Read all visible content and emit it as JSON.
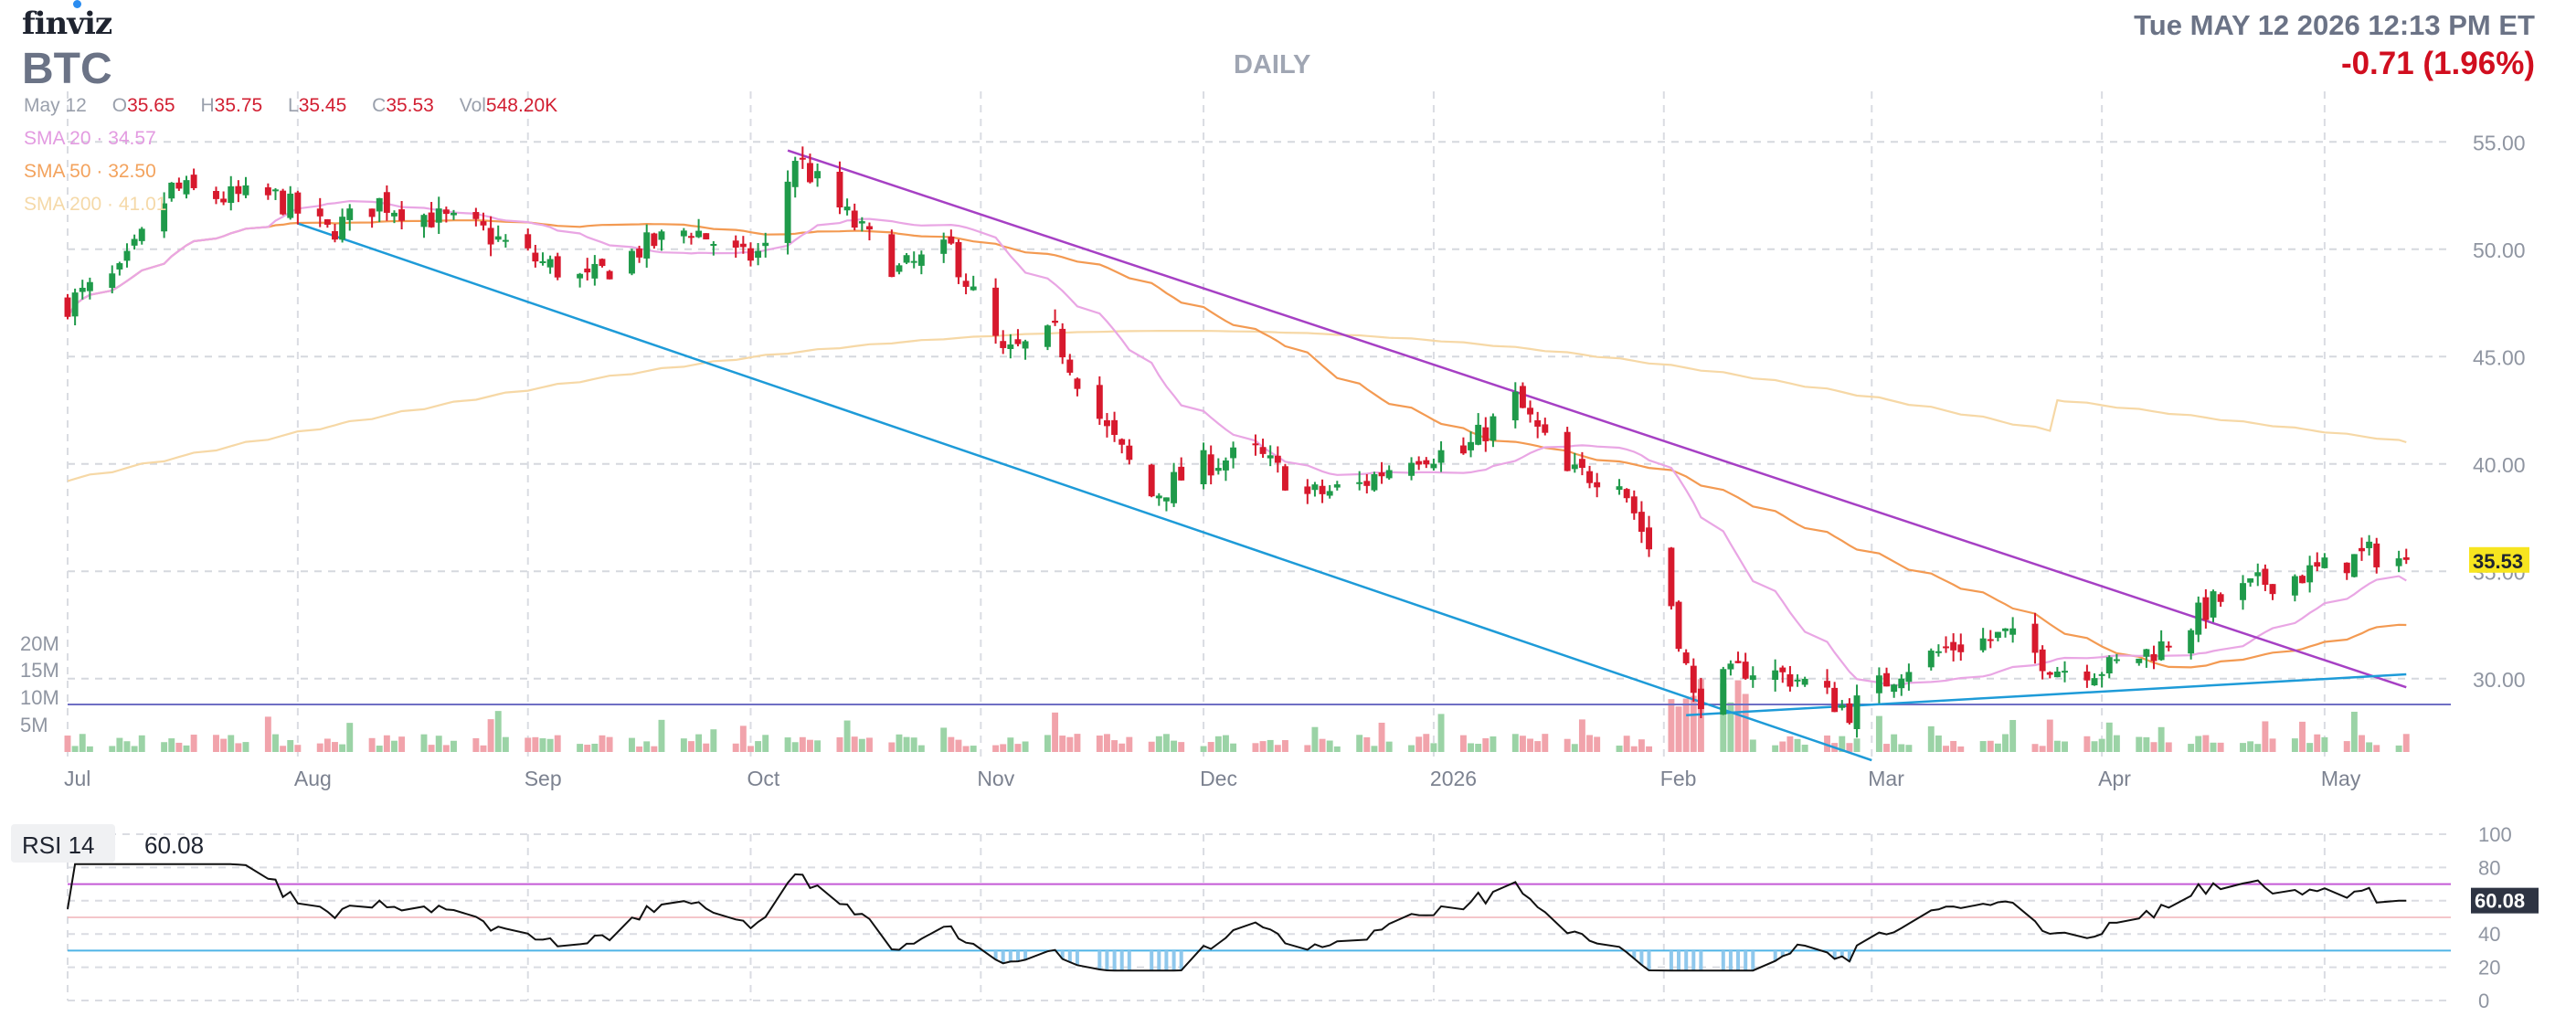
{
  "header": {
    "logo_text": "finviz",
    "ticker": "BTC",
    "datetime": "Tue MAY 12 2026 12:13 PM ET",
    "change": "-0.71 (1.96%)",
    "period": "DAILY"
  },
  "ohlc": {
    "date": "May 12",
    "open_label": "O",
    "open": "35.65",
    "high_label": "H",
    "high": "35.75",
    "low_label": "L",
    "low": "35.45",
    "close_label": "C",
    "close": "35.53",
    "vol_label": "Vol",
    "vol": "548.20K"
  },
  "sma": {
    "sma20": "SMA 20 · 34.57",
    "sma50": "SMA 50 · 32.50",
    "sma200": "SMA 200 · 41.01"
  },
  "rsi": {
    "label": "RSI 14",
    "value": "60.08",
    "value_tag": "60.08"
  },
  "price_tag": "35.53",
  "colors": {
    "up": "#1f9a4a",
    "down": "#d7192d",
    "vol_up": "#9bd3a6",
    "vol_down": "#f1a3ab",
    "sma20": "#e9a6e4",
    "sma50": "#f39a52",
    "sma200": "#f6d8a6",
    "trend_upper": "#a640c4",
    "trend_lower": "#1e9bd8",
    "h_line": "#6f6fc4",
    "rsi_over": "#c45ad6",
    "rsi_under": "#4fb4e6",
    "rsi_fill": "#8fc8ec"
  },
  "chart_data": [
    {
      "type": "candlestick",
      "title": "",
      "y_axis_ticks": [
        "55.00",
        "50.00",
        "45.00",
        "40.00",
        "35.00",
        "30.00"
      ],
      "volume_axis_ticks": [
        "20M",
        "15M",
        "10M",
        "5M"
      ],
      "x_axis_ticks": [
        "Jul",
        "Aug",
        "Sep",
        "Oct",
        "Nov",
        "Dec",
        "2026",
        "Feb",
        "Mar",
        "Apr",
        "May"
      ],
      "ylim": [
        26.5,
        56.5
      ],
      "grid": true,
      "last_close": 35.53,
      "sma_20_last": 34.57,
      "sma_50_last": 32.5,
      "sma_200_last": 41.01,
      "horizontal_line": 28.8,
      "close_path": [
        {
          "x": "Jul 1",
          "y": 47.5
        },
        {
          "x": "Jul 8",
          "y": 48.8
        },
        {
          "x": "Jul 15",
          "y": 52.8
        },
        {
          "x": "Jul 22",
          "y": 52.4
        },
        {
          "x": "Jul 29",
          "y": 52.4
        },
        {
          "x": "Aug 5",
          "y": 50.8
        },
        {
          "x": "Aug 12",
          "y": 52.2
        },
        {
          "x": "Aug 19",
          "y": 51.5
        },
        {
          "x": "Aug 26",
          "y": 50.8
        },
        {
          "x": "Sep 2",
          "y": 49.5
        },
        {
          "x": "Sep 9",
          "y": 48.5
        },
        {
          "x": "Sep 16",
          "y": 50.0
        },
        {
          "x": "Sep 23",
          "y": 51.0
        },
        {
          "x": "Sep 30",
          "y": 49.5
        },
        {
          "x": "Oct 3",
          "y": 50.0
        },
        {
          "x": "Oct 7",
          "y": 54.3
        },
        {
          "x": "Oct 14",
          "y": 51.5
        },
        {
          "x": "Oct 21",
          "y": 49.0
        },
        {
          "x": "Oct 28",
          "y": 50.0
        },
        {
          "x": "Nov 4",
          "y": 45.0
        },
        {
          "x": "Nov 11",
          "y": 46.0
        },
        {
          "x": "Nov 18",
          "y": 41.5
        },
        {
          "x": "Nov 24",
          "y": 38.5
        },
        {
          "x": "Dec 1",
          "y": 40.0
        },
        {
          "x": "Dec 8",
          "y": 40.5
        },
        {
          "x": "Dec 15",
          "y": 38.5
        },
        {
          "x": "Dec 22",
          "y": 39.0
        },
        {
          "x": "Dec 29",
          "y": 40.5
        },
        {
          "x": "Jan 5",
          "y": 40.5
        },
        {
          "x": "Jan 12",
          "y": 43.0
        },
        {
          "x": "Jan 19",
          "y": 39.5
        },
        {
          "x": "Jan 26",
          "y": 39.5
        },
        {
          "x": "Feb 2",
          "y": 33.5
        },
        {
          "x": "Feb 5",
          "y": 29.0
        },
        {
          "x": "Feb 12",
          "y": 30.5
        },
        {
          "x": "Feb 19",
          "y": 30.0
        },
        {
          "x": "Feb 26",
          "y": 28.5
        },
        {
          "x": "Mar 5",
          "y": 30.5
        },
        {
          "x": "Mar 12",
          "y": 31.5
        },
        {
          "x": "Mar 19",
          "y": 32.0
        },
        {
          "x": "Mar 26",
          "y": 30.5
        },
        {
          "x": "Apr 2",
          "y": 30.5
        },
        {
          "x": "Apr 9",
          "y": 31.5
        },
        {
          "x": "Apr 16",
          "y": 33.5
        },
        {
          "x": "Apr 23",
          "y": 34.5
        },
        {
          "x": "Apr 30",
          "y": 35.0
        },
        {
          "x": "May 7",
          "y": 35.8
        },
        {
          "x": "May 12",
          "y": 35.53
        }
      ]
    },
    {
      "type": "line",
      "name": "RSI 14",
      "y_axis_ticks": [
        "100",
        "80",
        "60",
        "40",
        "20",
        "0"
      ],
      "ylim": [
        0,
        100
      ],
      "overbought": 70,
      "oversold": 30,
      "last": 60.08
    }
  ]
}
